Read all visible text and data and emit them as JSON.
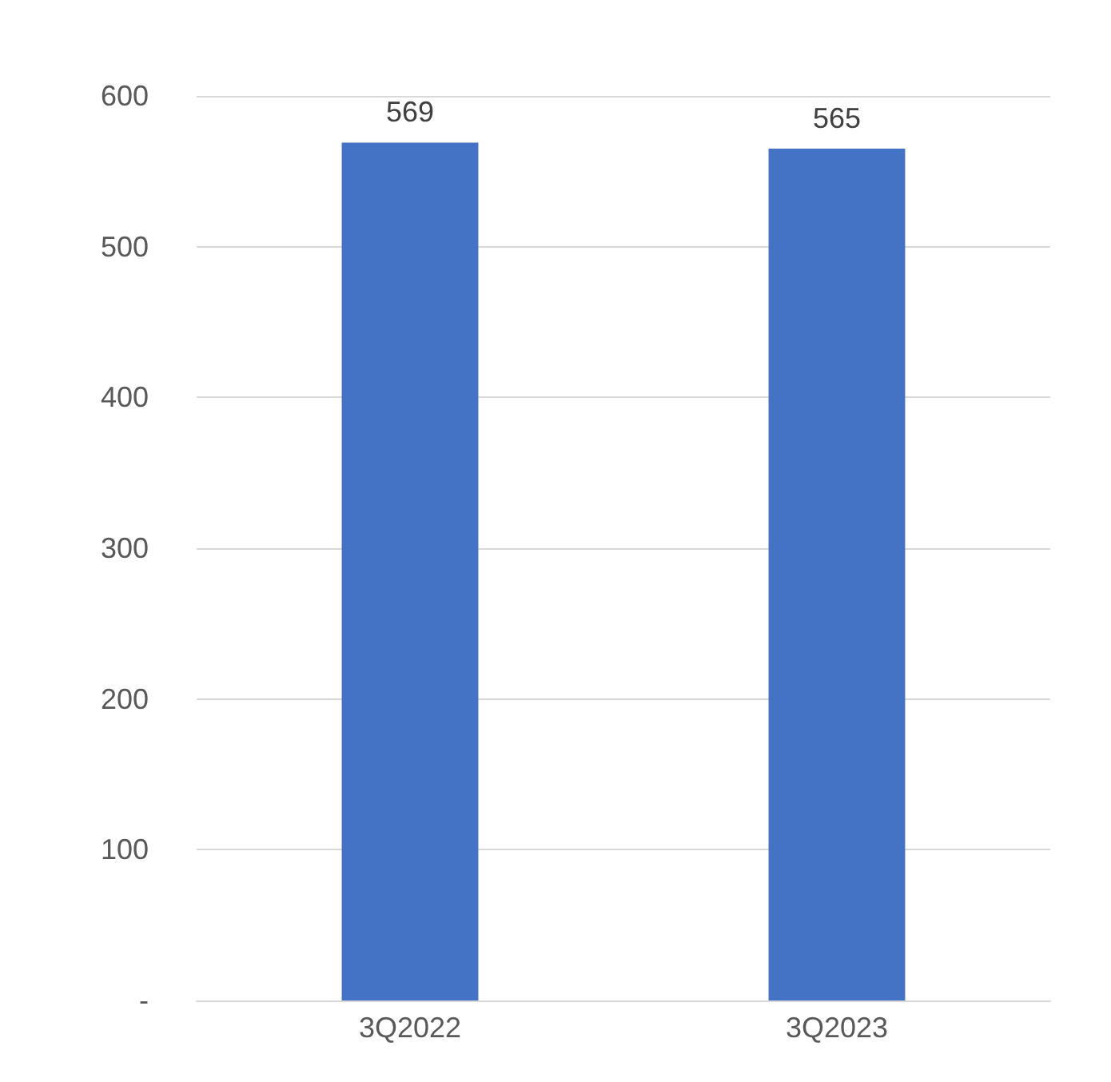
{
  "chart_data": {
    "type": "bar",
    "categories": [
      "3Q2022",
      "3Q2023"
    ],
    "values": [
      569,
      565
    ],
    "color": "#4472c4",
    "ylim": [
      0,
      600
    ],
    "yticks": [
      {
        "value": 0,
        "label": "-"
      },
      100,
      200,
      300,
      400,
      500,
      600
    ],
    "grid": "y",
    "data_labels": true
  }
}
